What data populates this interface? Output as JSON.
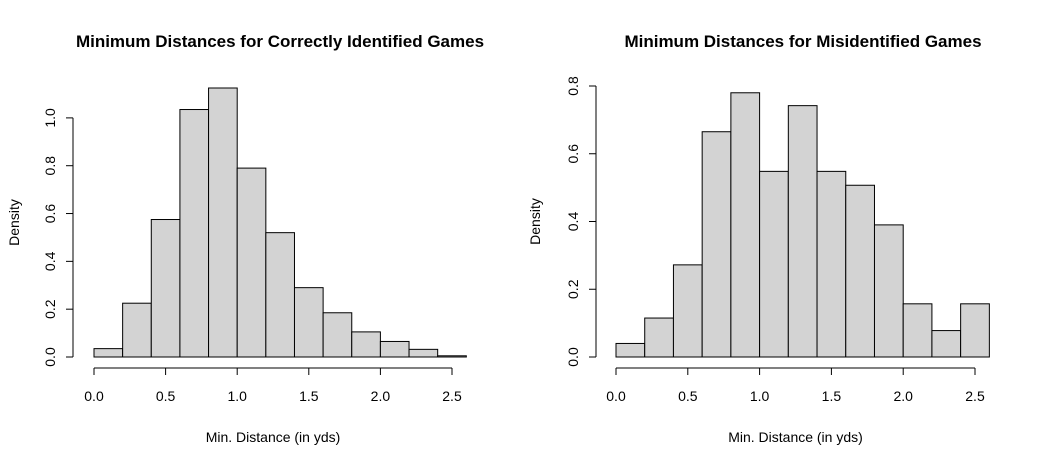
{
  "chart_data": [
    {
      "type": "bar",
      "title": "Minimum Distances for Correctly Identified Games",
      "xlabel": "Min. Distance (in yds)",
      "ylabel": "Density",
      "bin_width": 0.2,
      "bins_start": [
        0.0,
        0.2,
        0.4,
        0.6,
        0.8,
        1.0,
        1.2,
        1.4,
        1.6,
        1.8,
        2.0,
        2.2,
        2.4
      ],
      "values": [
        0.035,
        0.225,
        0.575,
        1.035,
        1.125,
        0.79,
        0.52,
        0.29,
        0.185,
        0.105,
        0.065,
        0.032,
        0.005
      ],
      "xlim": [
        0,
        2.6
      ],
      "ylim": [
        0,
        1.125
      ],
      "x_ticks": [
        "0.0",
        "0.5",
        "1.0",
        "1.5",
        "2.0",
        "2.5"
      ],
      "y_ticks": [
        "0.0",
        "0.2",
        "0.4",
        "0.6",
        "0.8",
        "1.0"
      ],
      "grid": false
    },
    {
      "type": "bar",
      "title": "Minimum Distances for Misidentified Games",
      "xlabel": "Min. Distance (in yds)",
      "ylabel": "Density",
      "bin_width": 0.2,
      "bins_start": [
        0.0,
        0.2,
        0.4,
        0.6,
        0.8,
        1.0,
        1.2,
        1.4,
        1.6,
        1.8,
        2.0,
        2.2,
        2.4
      ],
      "values": [
        0.04,
        0.115,
        0.272,
        0.665,
        0.78,
        0.548,
        0.742,
        0.548,
        0.507,
        0.39,
        0.157,
        0.078,
        0.157
      ],
      "xlim": [
        0,
        2.6
      ],
      "ylim": [
        0,
        0.8
      ],
      "x_ticks": [
        "0.0",
        "0.5",
        "1.0",
        "1.5",
        "2.0",
        "2.5"
      ],
      "y_ticks": [
        "0.0",
        "0.2",
        "0.4",
        "0.6",
        "0.8"
      ],
      "grid": false
    }
  ]
}
